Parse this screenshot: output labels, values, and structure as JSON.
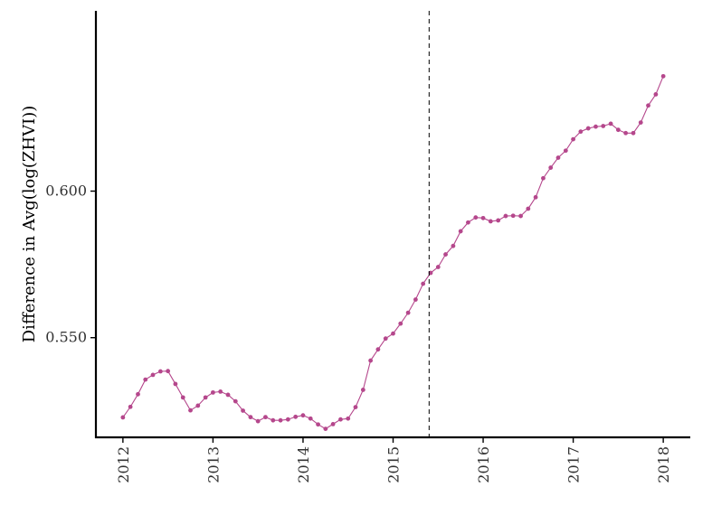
{
  "chart_data": {
    "type": "line",
    "title": "",
    "xlabel": "",
    "ylabel": "Difference in Avg(log(ZHVI))",
    "xlim": [
      2011.7,
      2018.3
    ],
    "ylim": [
      0.516,
      0.6615
    ],
    "x_ticks": [
      2012,
      2013,
      2014,
      2015,
      2016,
      2017,
      2018
    ],
    "x_tick_labels": [
      "2012",
      "2013",
      "2014",
      "2015",
      "2016",
      "2017",
      "2018"
    ],
    "y_ticks": [
      0.55,
      0.6
    ],
    "y_tick_labels": [
      "0.550",
      "0.600"
    ],
    "grid": false,
    "legend": "none",
    "reference_line": {
      "x": 2015.4,
      "style": "dashed",
      "color": "#000000"
    },
    "series": [
      {
        "color": "#b5478c",
        "x": [
          2012.0,
          2012.083,
          2012.167,
          2012.25,
          2012.333,
          2012.417,
          2012.5,
          2012.583,
          2012.667,
          2012.75,
          2012.833,
          2012.917,
          2013.0,
          2013.083,
          2013.167,
          2013.25,
          2013.333,
          2013.417,
          2013.5,
          2013.583,
          2013.667,
          2013.75,
          2013.833,
          2013.917,
          2014.0,
          2014.083,
          2014.167,
          2014.25,
          2014.333,
          2014.417,
          2014.5,
          2014.583,
          2014.667,
          2014.75,
          2014.833,
          2014.917,
          2015.0,
          2015.083,
          2015.167,
          2015.25,
          2015.333,
          2015.417,
          2015.5,
          2015.583,
          2015.667,
          2015.75,
          2015.833,
          2015.917,
          2016.0,
          2016.083,
          2016.167,
          2016.25,
          2016.333,
          2016.417,
          2016.5,
          2016.583,
          2016.667,
          2016.75,
          2016.833,
          2016.917,
          2017.0,
          2017.083,
          2017.167,
          2017.25,
          2017.333,
          2017.417,
          2017.5,
          2017.583,
          2017.667,
          2017.75,
          2017.833,
          2017.917,
          2018.0
        ],
        "y": [
          0.5228,
          0.5264,
          0.5307,
          0.5357,
          0.5373,
          0.5385,
          0.5386,
          0.5342,
          0.5296,
          0.5252,
          0.5268,
          0.5296,
          0.5313,
          0.5316,
          0.5305,
          0.5283,
          0.5251,
          0.5229,
          0.5215,
          0.5229,
          0.5218,
          0.5218,
          0.5221,
          0.523,
          0.5235,
          0.5224,
          0.5204,
          0.5189,
          0.5205,
          0.5221,
          0.5224,
          0.5263,
          0.5322,
          0.5422,
          0.546,
          0.5497,
          0.5514,
          0.5548,
          0.5585,
          0.563,
          0.5684,
          0.5721,
          0.5741,
          0.5784,
          0.5813,
          0.5863,
          0.5893,
          0.591,
          0.5908,
          0.5897,
          0.59,
          0.5915,
          0.5916,
          0.5915,
          0.594,
          0.5979,
          0.6044,
          0.608,
          0.6114,
          0.6138,
          0.6177,
          0.6203,
          0.6214,
          0.622,
          0.6222,
          0.623,
          0.6209,
          0.6198,
          0.6198,
          0.6234,
          0.6292,
          0.633,
          0.6392
        ]
      }
    ]
  }
}
